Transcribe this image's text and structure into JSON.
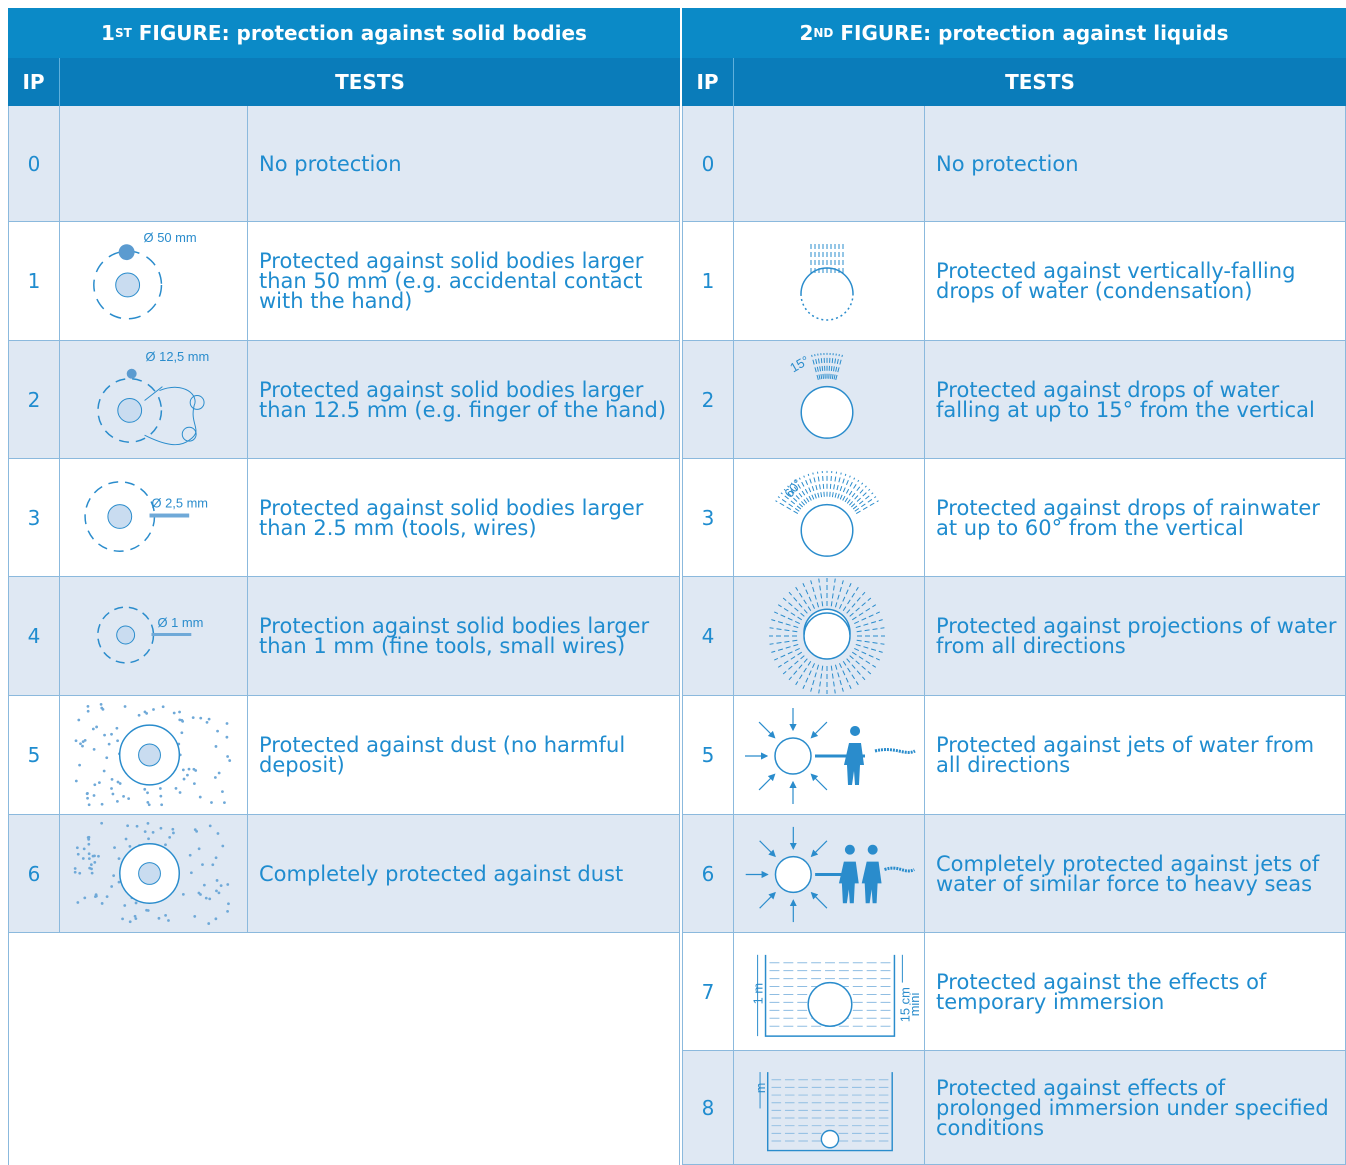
{
  "left": {
    "title": {
      "number": "1",
      "sup": "ST",
      "text": "FIGURE: protection against solid bodies"
    },
    "col_ip": "IP",
    "col_tests": "TESTS",
    "rows": [
      {
        "ip": "0",
        "text": "No protection"
      },
      {
        "ip": "1",
        "icon_label": "Ø 50 mm",
        "text": "Protected against solid bodies larger than 50 mm (e.g. accidental contact with the hand)"
      },
      {
        "ip": "2",
        "icon_label": "Ø 12,5 mm",
        "text": "Protected against solid bodies larger than 12.5 mm (e.g. finger of the hand)"
      },
      {
        "ip": "3",
        "icon_label": "Ø 2,5 mm",
        "text": "Protected against solid bodies larger than 2.5 mm (tools, wires)"
      },
      {
        "ip": "4",
        "icon_label": "Ø 1 mm",
        "text": "Protection against solid bodies larger than 1 mm (fine tools, small wires)"
      },
      {
        "ip": "5",
        "text": "Protected against dust (no harmful deposit)"
      },
      {
        "ip": "6",
        "text": "Completely protected against dust"
      }
    ]
  },
  "right": {
    "title": {
      "number": "2",
      "sup": "ND",
      "text": "FIGURE: protection against liquids"
    },
    "col_ip": "IP",
    "col_tests": "TESTS",
    "rows": [
      {
        "ip": "0",
        "text": "No protection"
      },
      {
        "ip": "1",
        "text": "Protected against vertically-falling drops of water (condensation)"
      },
      {
        "ip": "2",
        "icon_label": "15°",
        "text": "Protected against drops of water falling at up to 15° from the vertical"
      },
      {
        "ip": "3",
        "icon_label": "60°",
        "text": "Protected against drops of rainwater at up to 60° from the vertical"
      },
      {
        "ip": "4",
        "text": "Protected against projections of water from all directions"
      },
      {
        "ip": "5",
        "text": "Protected against jets of water from all directions"
      },
      {
        "ip": "6",
        "text": "Completely protected against jets of water of similar force to heavy seas"
      },
      {
        "ip": "7",
        "icon_label": "1 m",
        "icon_label_2": "15 cm",
        "icon_label_3": "mini",
        "text": "Protected against the effects of temporary immersion"
      },
      {
        "ip": "8",
        "icon_label": "m",
        "text": "Protected against effects of prolonged immersion under specified conditions"
      }
    ]
  }
}
